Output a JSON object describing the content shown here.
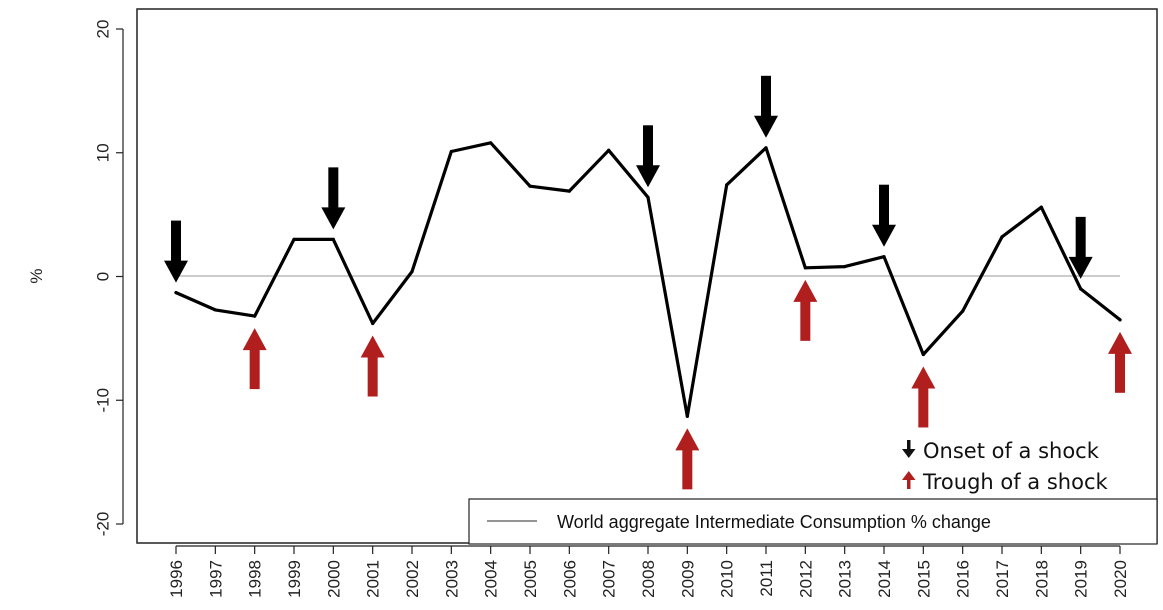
{
  "chart_data": {
    "type": "line",
    "title": "",
    "xlabel": "",
    "ylabel": "%",
    "ylim": [
      -21,
      21.5
    ],
    "yticks": [
      20,
      10,
      0,
      -10,
      -20
    ],
    "grid": false,
    "zero_line": true,
    "categories": [
      "1996",
      "1997",
      "1998",
      "1999",
      "2000",
      "2001",
      "2002",
      "2003",
      "2004",
      "2005",
      "2006",
      "2007",
      "2008",
      "2009",
      "2010",
      "2011",
      "2012",
      "2013",
      "2014",
      "2015",
      "2016",
      "2017",
      "2018",
      "2019",
      "2020"
    ],
    "series": [
      {
        "name": "World aggregate Intermediate Consumption % change",
        "color": "#000000",
        "values": [
          -1.3,
          -2.7,
          -3.2,
          3.0,
          3.0,
          -3.8,
          0.4,
          10.1,
          10.8,
          7.3,
          6.9,
          10.2,
          6.4,
          -11.3,
          7.4,
          10.4,
          0.7,
          0.8,
          1.6,
          -6.3,
          -2.8,
          3.2,
          5.6,
          -1.0,
          -3.5
        ]
      }
    ],
    "legend": {
      "position": "bottom-right",
      "label": "World aggregate Intermediate Consumption % change"
    },
    "annotations": {
      "onset_label": "Onset of a shock",
      "trough_label": "Trough of a shock",
      "onset_color": "#000000",
      "trough_color": "#b01e1e",
      "onset_years": [
        "1996",
        "2000",
        "2008",
        "2011",
        "2014",
        "2019"
      ],
      "trough_years": [
        "1998",
        "2001",
        "2009",
        "2012",
        "2015",
        "2020"
      ]
    }
  }
}
